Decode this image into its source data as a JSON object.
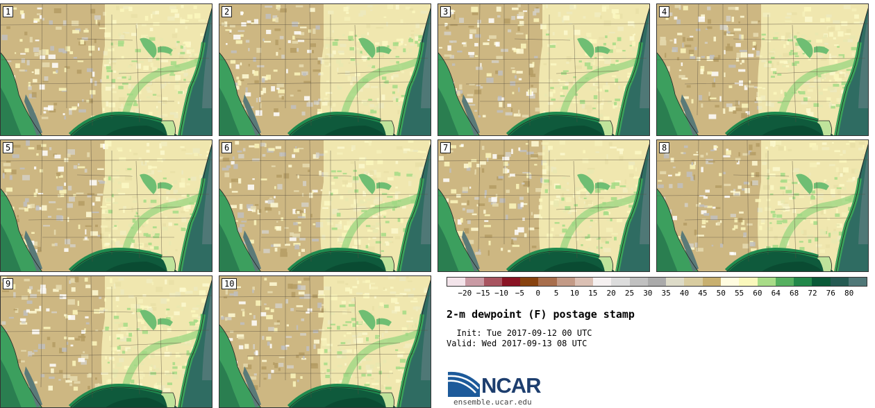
{
  "title": "2-m dewpoint (F) postage stamp",
  "init": "  Init: Tue 2017-09-12 00 UTC",
  "valid": "Valid: Wed 2017-09-13 08 UTC",
  "logo_text": "NCAR",
  "logo_url": "ensemble.ucar.edu",
  "members": [
    "1",
    "2",
    "3",
    "4",
    "5",
    "6",
    "7",
    "8",
    "9",
    "10"
  ],
  "colorbar": {
    "colors": [
      "#f3e4ea",
      "#c99aa4",
      "#a85460",
      "#8a1424",
      "#87420f",
      "#a86e4c",
      "#c39a86",
      "#dbc0b4",
      "#f5f0f0",
      "#dcdcdc",
      "#c0c0c0",
      "#aaaaaa",
      "#dddbc8",
      "#d8cca0",
      "#c8b070",
      "#fffce0",
      "#faf8bc",
      "#a8dc88",
      "#55b060",
      "#22884a",
      "#0a5a38",
      "#245a52",
      "#507878"
    ],
    "labels": [
      "−20",
      "−15",
      "−10",
      "−5",
      "0",
      "5",
      "10",
      "15",
      "20",
      "25",
      "30",
      "35",
      "40",
      "45",
      "50",
      "55",
      "60",
      "64",
      "68",
      "72",
      "76",
      "80"
    ]
  }
}
